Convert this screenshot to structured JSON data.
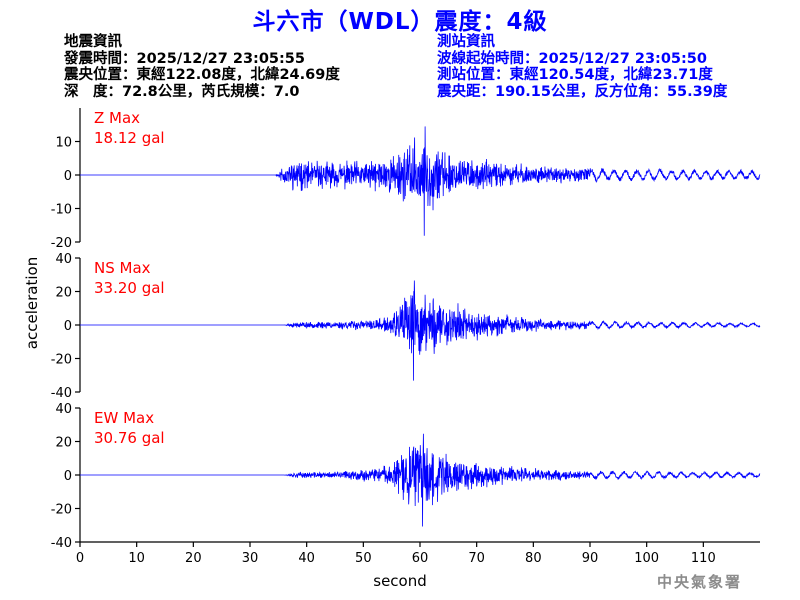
{
  "page": {
    "title": "斗六市（WDL）震度：4級",
    "footer": "中央氣象署"
  },
  "quake_info": {
    "header": "地震資訊",
    "origin_time": "發震時間：2025/12/27 23:05:55",
    "epicenter": "震央位置：東經122.08度，北緯24.69度",
    "depth_magnitude": "深　度：72.8公里，芮氏規模：7.0"
  },
  "station_info": {
    "header": "測站資訊",
    "wave_start": "波線起始時間：2025/12/27 23:05:50",
    "location": "測站位置：東經120.54度，北緯23.71度",
    "distance_azimuth": "震央距：190.15公里，反方位角：55.39度"
  },
  "colors": {
    "trace": "#0000ff",
    "max_label": "#ff0000",
    "title": "#0000ff",
    "axis": "#000000"
  },
  "chart_data": {
    "type": "line",
    "xlabel": "second",
    "ylabel": "acceleration",
    "xlim": [
      0,
      120
    ],
    "xticks": [
      0,
      10,
      20,
      30,
      40,
      50,
      60,
      70,
      80,
      90,
      100,
      110
    ],
    "grid": false,
    "legend": "none",
    "panels": [
      {
        "name": "Z",
        "max_label": "Z Max",
        "max_value": "18.12 gal",
        "peak": 18.12,
        "ylim": [
          -20,
          20
        ],
        "yticks": [
          -20,
          -10,
          0,
          10
        ],
        "onset": 35,
        "envelope": [
          [
            0,
            0
          ],
          [
            34.5,
            0
          ],
          [
            36,
            3
          ],
          [
            38,
            4
          ],
          [
            45,
            3.5
          ],
          [
            52,
            4
          ],
          [
            56,
            6
          ],
          [
            59,
            9
          ],
          [
            61,
            9
          ],
          [
            63,
            8
          ],
          [
            66,
            6
          ],
          [
            70,
            4
          ],
          [
            75,
            3
          ],
          [
            85,
            2
          ],
          [
            95,
            1.6
          ],
          [
            120,
            1.2
          ]
        ],
        "seed": 11
      },
      {
        "name": "NS",
        "max_label": "NS Max",
        "max_value": "33.20 gal",
        "peak": 33.2,
        "ylim": [
          -40,
          40
        ],
        "yticks": [
          -40,
          -20,
          0,
          20,
          40
        ],
        "onset": 36,
        "envelope": [
          [
            0,
            0
          ],
          [
            36,
            0
          ],
          [
            38,
            1.5
          ],
          [
            45,
            2
          ],
          [
            52,
            3
          ],
          [
            55,
            5
          ],
          [
            57,
            14
          ],
          [
            59,
            20
          ],
          [
            61,
            18
          ],
          [
            64,
            14
          ],
          [
            68,
            9
          ],
          [
            72,
            6
          ],
          [
            80,
            3.5
          ],
          [
            90,
            2
          ],
          [
            120,
            1
          ]
        ],
        "seed": 23
      },
      {
        "name": "EW",
        "max_label": "EW Max",
        "max_value": "30.76 gal",
        "peak": 30.76,
        "ylim": [
          -40,
          40
        ],
        "yticks": [
          -40,
          -20,
          0,
          20,
          40
        ],
        "onset": 36,
        "envelope": [
          [
            0,
            0
          ],
          [
            36,
            0
          ],
          [
            38,
            1.5
          ],
          [
            45,
            2
          ],
          [
            52,
            3.5
          ],
          [
            55,
            6
          ],
          [
            57,
            14
          ],
          [
            59,
            19
          ],
          [
            61,
            19
          ],
          [
            64,
            14
          ],
          [
            68,
            9
          ],
          [
            72,
            6
          ],
          [
            80,
            3.5
          ],
          [
            90,
            2.2
          ],
          [
            120,
            1.4
          ]
        ],
        "seed": 37
      }
    ]
  }
}
